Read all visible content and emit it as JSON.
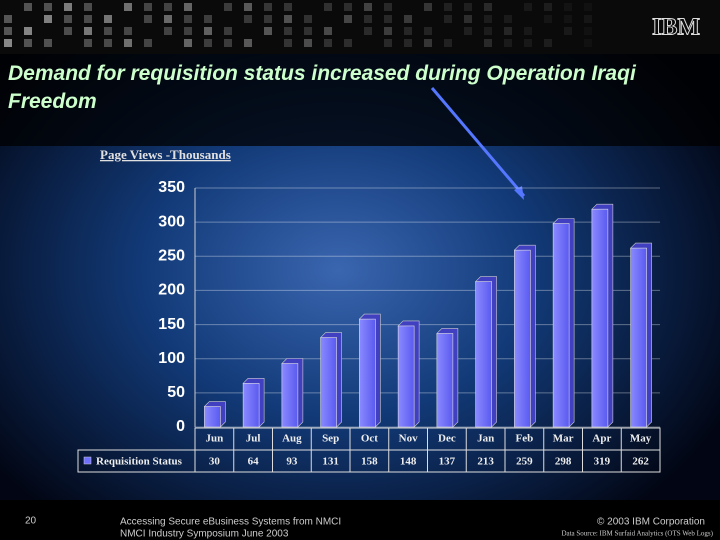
{
  "title": "Demand for requisition status increased during Operation Iraqi Freedom",
  "logo": "IBM",
  "chart_data": {
    "type": "bar",
    "chart_title": "Page Views -Thousands",
    "categories": [
      "Jun",
      "Jul",
      "Aug",
      "Sep",
      "Oct",
      "Nov",
      "Dec",
      "Jan",
      "Feb",
      "Mar",
      "Apr",
      "May"
    ],
    "series": [
      {
        "name": "Requisition Status",
        "color": "#7070ff",
        "values": [
          30,
          64,
          93,
          131,
          158,
          148,
          137,
          213,
          259,
          298,
          319,
          262
        ]
      }
    ],
    "ylim": [
      0,
      350
    ],
    "yticks": [
      0,
      50,
      100,
      150,
      200,
      250,
      300,
      350
    ],
    "grid": true
  },
  "footer": {
    "slide_number": "20",
    "line1": "Accessing Secure eBusiness Systems from NMCI",
    "line2": "NMCI Industry Symposium June 2003",
    "copyright": "© 2003 IBM Corporation",
    "source": "Data Source: IBM Surfaid Analytics (OTS Web Logs)"
  }
}
